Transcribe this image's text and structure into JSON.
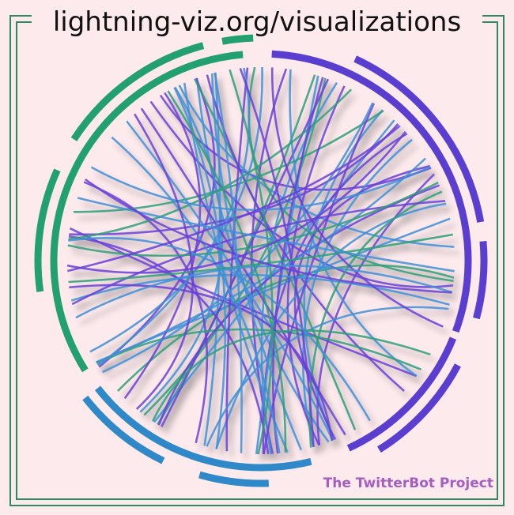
{
  "header": {
    "title": "lightning-viz.org/visualizations"
  },
  "footer": {
    "credit": "The TwitterBot Project"
  },
  "diagram": {
    "type": "chord-diagram",
    "colors": {
      "background": "#fdeaed",
      "frame": "#2e8a5c",
      "group_green": "#22a070",
      "group_blue": "#2f88c8",
      "group_purple": "#5a3ed0",
      "chord_green": "#2e9e7a",
      "chord_blue": "#3f8fd6",
      "chord_purple": "#6a40d8",
      "credit_text": "#a45ec0"
    }
  }
}
